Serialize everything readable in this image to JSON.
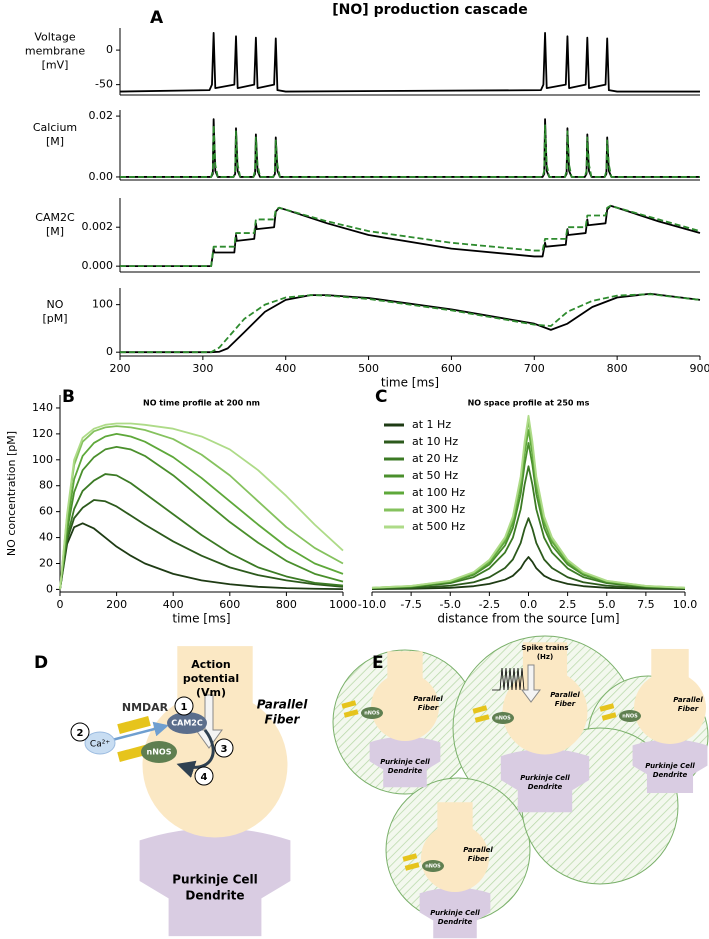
{
  "title": "[NO] production cascade",
  "panel_labels": [
    "A",
    "B",
    "C",
    "D",
    "E"
  ],
  "chart_data": [
    {
      "type": "line",
      "ylabel": [
        "Voltage",
        "membrane",
        "[mV]"
      ],
      "x": [
        200,
        308,
        311,
        313,
        315,
        338,
        340,
        342,
        362,
        364,
        366,
        386,
        388,
        390,
        400,
        708,
        711,
        713,
        715,
        738,
        740,
        742,
        762,
        764,
        766,
        786,
        788,
        790,
        800,
        900
      ],
      "series": [
        {
          "color": "#000000",
          "linestyle": "solid",
          "values": [
            -60,
            -58,
            -50,
            25,
            -55,
            -50,
            20,
            -55,
            -50,
            18,
            -55,
            -50,
            17,
            -58,
            -60,
            -58,
            -50,
            25,
            -55,
            -50,
            20,
            -55,
            -50,
            18,
            -55,
            -50,
            17,
            -58,
            -60,
            -60
          ]
        }
      ],
      "xlim": [
        200,
        900
      ],
      "ylim": [
        -65,
        32
      ],
      "yticks": [
        -50,
        0
      ]
    },
    {
      "type": "line",
      "ylabel": [
        "Calcium",
        "[M]"
      ],
      "x": [
        200,
        310,
        312,
        313,
        315,
        318,
        337,
        339,
        340,
        342,
        345,
        361,
        363,
        364,
        366,
        369,
        385,
        387,
        388,
        390,
        393,
        710,
        712,
        713,
        715,
        718,
        737,
        739,
        740,
        742,
        745,
        761,
        763,
        764,
        766,
        769,
        785,
        787,
        788,
        790,
        793,
        900
      ],
      "series": [
        {
          "color": "#000000",
          "linestyle": "solid",
          "values": [
            0,
            0,
            0.001,
            0.019,
            0.002,
            0,
            0,
            0.001,
            0.016,
            0.002,
            0,
            0,
            0.001,
            0.014,
            0.002,
            0,
            0,
            0.001,
            0.013,
            0.002,
            0,
            0,
            0.001,
            0.019,
            0.002,
            0,
            0,
            0.001,
            0.016,
            0.002,
            0,
            0,
            0.001,
            0.014,
            0.002,
            0,
            0,
            0.001,
            0.013,
            0.002,
            0,
            0
          ]
        },
        {
          "color": "#2e8b2e",
          "linestyle": "dashed",
          "values": [
            0,
            0,
            0.002,
            0.017,
            0.004,
            0,
            0,
            0.002,
            0.015,
            0.004,
            0,
            0,
            0.002,
            0.013,
            0.004,
            0,
            0,
            0.002,
            0.012,
            0.004,
            0,
            0,
            0.002,
            0.017,
            0.004,
            0,
            0,
            0.002,
            0.015,
            0.004,
            0,
            0,
            0.002,
            0.013,
            0.004,
            0,
            0,
            0.002,
            0.012,
            0.004,
            0,
            0
          ]
        }
      ],
      "xlim": [
        200,
        900
      ],
      "ylim": [
        -0.001,
        0.022
      ],
      "yticks": [
        {
          "value": 0,
          "label": "0.00"
        },
        {
          "value": 0.02,
          "label": "0.02"
        }
      ]
    },
    {
      "type": "line",
      "ylabel": [
        "CAM2C",
        "[M]"
      ],
      "x": [
        200,
        310,
        313,
        314,
        338,
        340,
        341,
        362,
        364,
        365,
        386,
        388,
        392,
        400,
        450,
        500,
        600,
        700,
        710,
        713,
        714,
        738,
        740,
        741,
        762,
        764,
        765,
        786,
        788,
        792,
        800,
        850,
        900
      ],
      "series": [
        {
          "color": "#000000",
          "linestyle": "solid",
          "values": [
            0,
            0,
            0.0009,
            0.0007,
            0.0007,
            0.0016,
            0.0013,
            0.0014,
            0.0022,
            0.0019,
            0.002,
            0.0028,
            0.003,
            0.0029,
            0.0022,
            0.0016,
            0.0009,
            0.0005,
            0.0005,
            0.0012,
            0.001,
            0.0011,
            0.0019,
            0.0016,
            0.0017,
            0.0024,
            0.0021,
            0.0022,
            0.0029,
            0.0031,
            0.003,
            0.0023,
            0.0017
          ]
        },
        {
          "color": "#2e8b2e",
          "linestyle": "dashed",
          "values": [
            0,
            0,
            0.001,
            0.001,
            0.001,
            0.0017,
            0.0017,
            0.0017,
            0.0024,
            0.0024,
            0.0024,
            0.0029,
            0.003,
            0.0029,
            0.0023,
            0.0018,
            0.0012,
            0.0008,
            0.0008,
            0.0014,
            0.0014,
            0.0014,
            0.002,
            0.002,
            0.002,
            0.0026,
            0.0026,
            0.0026,
            0.003,
            0.0031,
            0.003,
            0.0024,
            0.0018
          ]
        }
      ],
      "xlim": [
        200,
        900
      ],
      "ylim": [
        -0.0003,
        0.0035
      ],
      "yticks": [
        {
          "value": 0,
          "label": "0.000"
        },
        {
          "value": 0.002,
          "label": "0.002"
        }
      ]
    },
    {
      "type": "line",
      "ylabel": [
        "NO",
        "[pM]"
      ],
      "xlabel": "time [ms]",
      "x": [
        200,
        310,
        320,
        330,
        350,
        375,
        400,
        430,
        450,
        500,
        600,
        700,
        720,
        740,
        770,
        800,
        840,
        900
      ],
      "series": [
        {
          "color": "#000000",
          "linestyle": "solid",
          "values": [
            0,
            0,
            1,
            8,
            42,
            85,
            110,
            120,
            120,
            114,
            90,
            60,
            47,
            60,
            95,
            115,
            123,
            110
          ]
        },
        {
          "color": "#2e8b2e",
          "linestyle": "dashed",
          "values": [
            0,
            0,
            10,
            30,
            70,
            100,
            115,
            120,
            119,
            112,
            88,
            58,
            55,
            85,
            108,
            119,
            122,
            110
          ]
        }
      ],
      "xlim": [
        200,
        900
      ],
      "ylim": [
        -8,
        135
      ],
      "yticks": [
        0,
        100
      ],
      "xticks": [
        200,
        300,
        400,
        500,
        600,
        700,
        800,
        900
      ]
    },
    {
      "type": "line",
      "title": "NO time profile at 200 nm",
      "xlabel": "time [ms]",
      "ylabel": "NO concentration [pM]",
      "x": [
        0,
        25,
        50,
        80,
        120,
        160,
        200,
        250,
        300,
        400,
        500,
        600,
        700,
        800,
        900,
        1000
      ],
      "series": [
        {
          "color": "#1e3b14",
          "values": [
            0,
            35,
            48,
            51,
            47,
            40,
            33,
            26,
            20,
            12,
            7,
            4,
            2,
            1,
            0.5,
            0.2
          ]
        },
        {
          "color": "#2c5a1c",
          "values": [
            0,
            38,
            55,
            63,
            69,
            68,
            64,
            57,
            50,
            37,
            26,
            17,
            11,
            7,
            4,
            2
          ]
        },
        {
          "color": "#3b7a24",
          "values": [
            0,
            40,
            62,
            76,
            84,
            89,
            88,
            82,
            74,
            58,
            42,
            28,
            17,
            10,
            5,
            3
          ]
        },
        {
          "color": "#4a8f2c",
          "values": [
            0,
            45,
            75,
            92,
            102,
            108,
            110,
            108,
            103,
            88,
            70,
            52,
            36,
            22,
            12,
            6
          ]
        },
        {
          "color": "#5ea83a",
          "values": [
            0,
            50,
            85,
            103,
            113,
            118,
            120,
            118,
            114,
            102,
            86,
            68,
            50,
            33,
            20,
            12
          ]
        },
        {
          "color": "#85c25e",
          "values": [
            0,
            56,
            96,
            114,
            122,
            125,
            126,
            125,
            123,
            116,
            104,
            88,
            68,
            48,
            32,
            20
          ]
        },
        {
          "color": "#aedb88",
          "values": [
            0,
            58,
            100,
            117,
            124,
            127,
            128,
            128,
            127,
            124,
            118,
            108,
            92,
            72,
            50,
            30
          ]
        }
      ],
      "xlim": [
        0,
        1000
      ],
      "ylim": [
        -2,
        150
      ],
      "xticks": [
        0,
        200,
        400,
        600,
        800,
        1000
      ],
      "yticks": [
        0,
        20,
        40,
        60,
        80,
        100,
        120,
        140
      ]
    },
    {
      "type": "line",
      "title": "NO space profile at 250 ms",
      "xlabel": "distance from the source [um]",
      "legend": "upper left",
      "x": [
        -10,
        -7.5,
        -5,
        -3.5,
        -2.5,
        -1.5,
        -1,
        -0.5,
        -0.25,
        0,
        0.25,
        0.5,
        1,
        1.5,
        2.5,
        3.5,
        5,
        7.5,
        10
      ],
      "series": [
        {
          "name": "at 1 Hz",
          "color": "#1e3b14",
          "values": [
            0.25,
            0.5,
            1.25,
            2.5,
            4.3,
            7.5,
            10.5,
            16.3,
            21.3,
            25,
            21.3,
            16.3,
            10.5,
            7.5,
            4.3,
            2.5,
            1.25,
            0.5,
            0.25
          ]
        },
        {
          "name": "at 10 Hz",
          "color": "#2c5a1c",
          "values": [
            0.6,
            1.1,
            2.8,
            5.5,
            9.4,
            16.5,
            23.1,
            35.8,
            46.8,
            55,
            46.8,
            35.8,
            23.1,
            16.5,
            9.4,
            5.5,
            2.8,
            1.1,
            0.6
          ]
        },
        {
          "name": "at 20 Hz",
          "color": "#3b7a24",
          "values": [
            1,
            1.9,
            4.8,
            9.5,
            16.2,
            28.5,
            39.9,
            61.8,
            80.8,
            95,
            80.8,
            61.8,
            39.9,
            28.5,
            16.2,
            9.5,
            4.8,
            1.9,
            1
          ]
        },
        {
          "name": "at 50 Hz",
          "color": "#4a8f2c",
          "values": [
            1.1,
            2.3,
            5.7,
            11.3,
            19.2,
            33.9,
            47.5,
            73.5,
            96.1,
            113,
            96.1,
            73.5,
            47.5,
            33.9,
            19.2,
            11.3,
            5.7,
            2.3,
            1.1
          ]
        },
        {
          "name": "at 100 Hz",
          "color": "#5ea83a",
          "values": [
            1.2,
            2.5,
            6.2,
            12.3,
            20.9,
            36.9,
            51.7,
            80,
            104.6,
            123,
            104.6,
            80,
            51.7,
            36.9,
            20.9,
            12.3,
            6.2,
            2.5,
            1.2
          ]
        },
        {
          "name": "at 300 Hz",
          "color": "#85c25e",
          "values": [
            1.3,
            2.6,
            6.5,
            13,
            22.1,
            39,
            54.6,
            84.5,
            110.5,
            130,
            110.5,
            84.5,
            54.6,
            39,
            22.1,
            13,
            6.5,
            2.6,
            1.3
          ]
        },
        {
          "name": "at 500 Hz",
          "color": "#aedb88",
          "values": [
            1.3,
            2.7,
            6.7,
            13.4,
            22.8,
            40.2,
            56.3,
            87.1,
            113.9,
            134,
            113.9,
            87.1,
            56.3,
            40.2,
            22.8,
            13.4,
            6.7,
            2.7,
            1.3
          ]
        }
      ],
      "xlim": [
        -10,
        10
      ],
      "ylim": [
        -2,
        150
      ],
      "xticks": [
        {
          "value": -10,
          "label": "-10.0"
        },
        {
          "value": -7.5,
          "label": "-7.5"
        },
        {
          "value": -5,
          "label": "-5.0"
        },
        {
          "value": -2.5,
          "label": "-2.5"
        },
        {
          "value": 0,
          "label": "0.0"
        },
        {
          "value": 2.5,
          "label": "2.5"
        },
        {
          "value": 5,
          "label": "5.0"
        },
        {
          "value": 7.5,
          "label": "7.5"
        },
        {
          "value": 10,
          "label": "10.0"
        }
      ]
    }
  ],
  "diagram_d": {
    "action_potential": [
      "Action",
      "potential",
      "(Vm)"
    ],
    "parallel_fiber": [
      "Parallel",
      "Fiber"
    ],
    "nmdar": "NMDAR",
    "cam2c": "CAM2C",
    "nnos": "nNOS",
    "calcium": "Ca²⁺",
    "steps": [
      "1",
      "2",
      "3",
      "4"
    ],
    "purkinje": [
      "Purkinje Cell",
      "Dendrite"
    ]
  },
  "diagram_e": {
    "spike_trains": [
      "Spike trains",
      "(Hz)"
    ],
    "cells": [
      {
        "fiber": [
          "Parallel",
          "Fiber"
        ],
        "enzyme": "nNOS",
        "dendrite": [
          "Purkinje Cell",
          "Dendrite"
        ]
      },
      {
        "fiber": [
          "Parallel",
          "Fiber"
        ],
        "enzyme": "nNOS",
        "dendrite": [
          "Purkinje Cell",
          "Dendrite"
        ]
      },
      {
        "fiber": [
          "Parallel",
          "Fiber"
        ],
        "enzyme": "nNOS",
        "dendrite": [
          "Purkinje Cell",
          "Dendrite"
        ]
      },
      {
        "fiber": [
          "Parallel",
          "Fiber"
        ],
        "enzyme": "nNOS",
        "dendrite": [
          "Purkinje Cell",
          "Dendrite"
        ]
      }
    ]
  }
}
